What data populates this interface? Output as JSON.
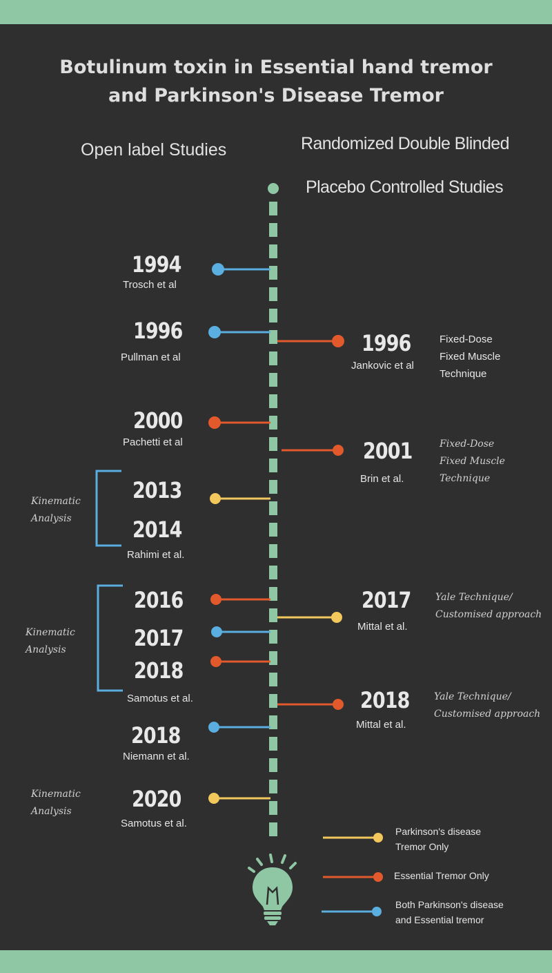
{
  "title": {
    "line1": "Botulinum toxin in Essential hand tremor",
    "line2": "and Parkinson's Disease Tremor"
  },
  "headers": {
    "open_label": "Open label Studies",
    "rct_line1": "Randomized Double Blinded",
    "rct_line2": "Placebo Controlled Studies"
  },
  "left_events": [
    {
      "year": "1994",
      "author": "Trosch et al",
      "type": "both"
    },
    {
      "year": "1996",
      "author": "Pullman et al",
      "type": "both"
    },
    {
      "year": "2000",
      "author": "Pachetti et al",
      "type": "essential"
    },
    {
      "year": "2013",
      "author": "",
      "type": "parkinsons"
    },
    {
      "year": "2014",
      "author": "Rahimi et al.",
      "type": ""
    },
    {
      "year": "2016",
      "author": "",
      "type": "essential"
    },
    {
      "year": "2017",
      "author": "",
      "type": "both"
    },
    {
      "year": "2018",
      "author": "Samotus et al.",
      "type": "essential"
    },
    {
      "year": "2018",
      "author": "Niemann et  al.",
      "type": "both"
    },
    {
      "year": "2020",
      "author": "Samotus et al.",
      "type": "parkinsons"
    }
  ],
  "right_events": [
    {
      "year": "1996",
      "author": "Jankovic et al",
      "type": "essential",
      "note": [
        "Fixed-Dose",
        "Fixed Muscle",
        "Technique"
      ]
    },
    {
      "year": "2001",
      "author": "Brin et al.",
      "type": "essential",
      "note": [
        "Fixed-Dose",
        "Fixed Muscle",
        "Technique"
      ]
    },
    {
      "year": "2017",
      "author": "Mittal et al.",
      "type": "parkinsons",
      "note": [
        "Yale Technique/",
        "Customised approach"
      ]
    },
    {
      "year": "2018",
      "author": "Mittal et al.",
      "type": "essential",
      "note": [
        "Yale Technique/",
        "Customised approach"
      ]
    }
  ],
  "annotations": [
    {
      "label": [
        "Kinematic",
        "Analysis"
      ]
    },
    {
      "label": [
        "Kinematic",
        "Analysis"
      ]
    },
    {
      "label": [
        "Kinematic",
        "Analysis"
      ]
    }
  ],
  "legend": [
    {
      "type": "parkinsons",
      "label": [
        "Parkinson's disease",
        "Tremor Only"
      ]
    },
    {
      "type": "essential",
      "label": [
        "Essential Tremor Only"
      ]
    },
    {
      "type": "both",
      "label": [
        "Both Parkinson's disease",
        "and Essential tremor"
      ]
    }
  ],
  "colors": {
    "background": "#2f2f2f",
    "accent_green": "#8fc6a4",
    "both": "#5aaee0",
    "essential": "#e25a2c",
    "parkinsons": "#f2c85c",
    "bracket": "#5aaee0"
  },
  "icons": {
    "bottom": "lightbulb-icon"
  }
}
